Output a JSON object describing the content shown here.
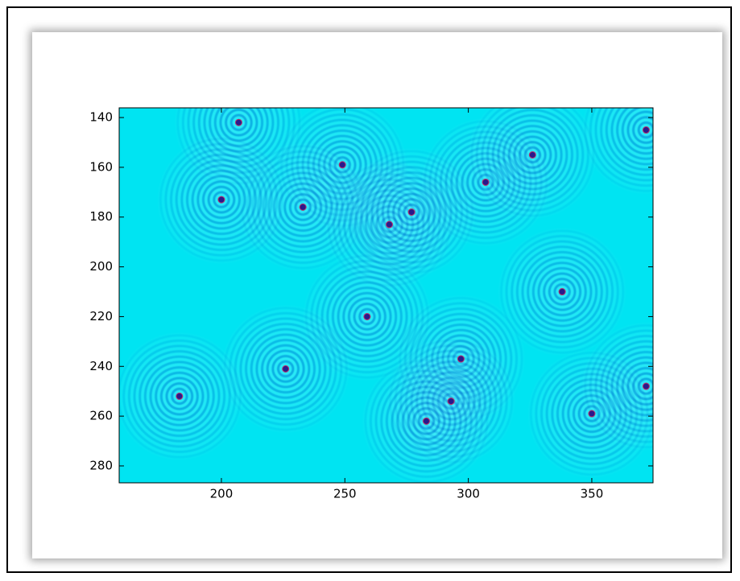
{
  "chart_data": {
    "type": "image",
    "x": [
      207,
      249,
      233,
      200,
      268,
      277,
      307,
      326,
      338,
      259,
      226,
      183,
      297,
      293,
      283,
      350,
      372,
      372
    ],
    "y": [
      142,
      159,
      176,
      173,
      183,
      178,
      166,
      155,
      210,
      220,
      241,
      252,
      237,
      254,
      262,
      259,
      248,
      145
    ],
    "xlim": [
      158.6,
      374.8
    ],
    "ylim": [
      286.8,
      136.1
    ],
    "xticks": [
      200,
      250,
      300,
      350
    ],
    "yticks": [
      140,
      160,
      180,
      200,
      220,
      240,
      260,
      280
    ],
    "color": "#00e4f2"
  }
}
